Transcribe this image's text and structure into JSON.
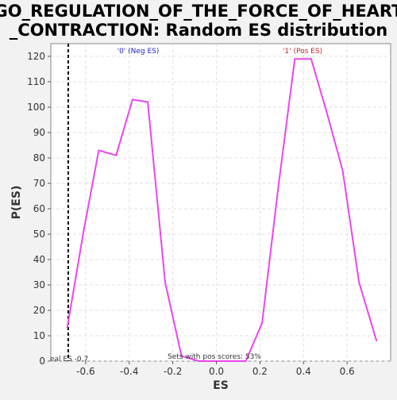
{
  "chart_data": {
    "type": "line",
    "title_lines": [
      "GO_REGULATION_OF_THE_FORCE_OF_HEART",
      "_CONTRACTION: Random ES distribution"
    ],
    "xlabel": "ES",
    "ylabel": "P(ES)",
    "xlim": [
      -0.76,
      0.8
    ],
    "ylim": [
      0,
      125
    ],
    "xticks": [
      -0.6,
      -0.4,
      -0.2,
      0.0,
      0.2,
      0.4,
      0.6
    ],
    "xtick_labels": [
      "-0.6",
      "-0.4",
      "-0.2",
      "0.0",
      "0.2",
      "0.4",
      "0.6"
    ],
    "yticks": [
      0,
      10,
      20,
      30,
      40,
      50,
      60,
      70,
      80,
      90,
      100,
      110,
      120
    ],
    "ytick_labels": [
      "0",
      "10",
      "20",
      "30",
      "40",
      "50",
      "60",
      "70",
      "80",
      "90",
      "100",
      "110",
      "120"
    ],
    "grid": true,
    "series": [
      {
        "color": "#ee44ee",
        "x": [
          -0.685,
          -0.61,
          -0.54,
          -0.46,
          -0.385,
          -0.315,
          -0.235,
          -0.16,
          -0.08,
          0.0,
          0.08,
          0.135,
          0.21,
          0.285,
          0.36,
          0.435,
          0.51,
          0.58,
          0.655,
          0.735
        ],
        "y": [
          13,
          51,
          83,
          81,
          103,
          102,
          31,
          2,
          0,
          0,
          0,
          0,
          15,
          69,
          119,
          119,
          97,
          75,
          31,
          8
        ]
      }
    ],
    "reference_line": {
      "x": -0.68,
      "style": "dashed",
      "color": "#000000"
    },
    "annotations": {
      "neg_label": "'0' (Neg ES)",
      "neg_color": "#2222cc",
      "pos_label": "'1' (Pos ES)",
      "pos_color": "#cc2222",
      "real_es_label": "eal ES -0.7",
      "sets_label": "Sets with pos scores: 53%"
    }
  }
}
